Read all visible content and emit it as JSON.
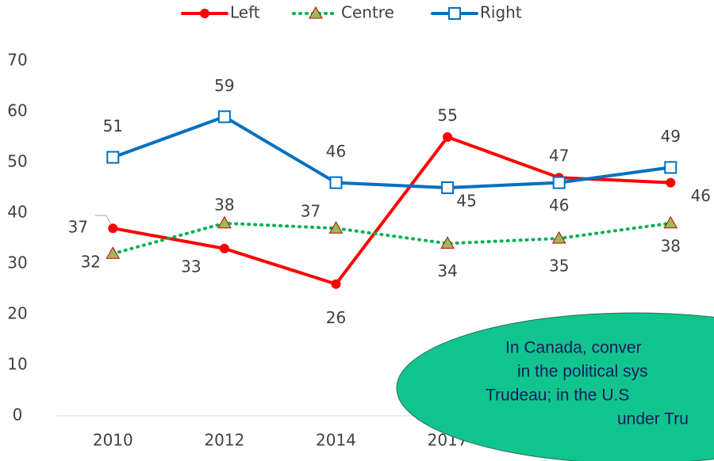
{
  "chart_data": {
    "type": "line",
    "categories": [
      "2010",
      "2012",
      "2014",
      "2017",
      null,
      null
    ],
    "series": [
      {
        "name": "Left",
        "color": "#ff0000",
        "marker": "circle",
        "dash": "solid",
        "values": [
          37,
          33,
          26,
          55,
          47,
          46
        ]
      },
      {
        "name": "Centre",
        "color": "#00b050",
        "marker": "triangle",
        "dash": "dotted",
        "values": [
          32,
          38,
          37,
          34,
          35,
          38
        ]
      },
      {
        "name": "Right",
        "color": "#0070c0",
        "marker": "square",
        "dash": "solid",
        "values": [
          51,
          59,
          46,
          45,
          46,
          49
        ]
      }
    ],
    "ylim": [
      0,
      70
    ],
    "yticks": [
      0,
      10,
      20,
      30,
      40,
      50,
      60,
      70
    ],
    "grid": false,
    "legend": "top",
    "annotation": [
      "In Canada, conver",
      "in the political sys",
      "Trudeau; in the U.S",
      "under Tru"
    ]
  }
}
